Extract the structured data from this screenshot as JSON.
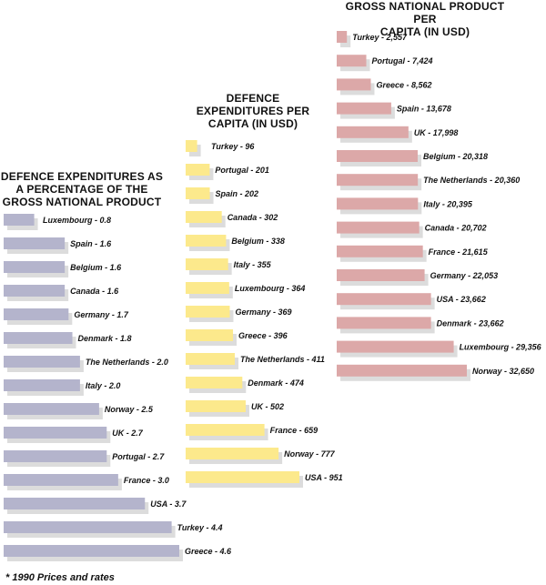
{
  "footnote": "* 1990 Prices and rates",
  "chart_data": [
    {
      "type": "bar",
      "orientation": "horizontal",
      "title": "DEFENCE EXPENDITURES AS\nA PERCENTAGE OF THE\nGROSS NATIONAL PRODUCT",
      "color": "#b4b4cc",
      "shadow_color": "#dcdcdc",
      "categories": [
        "Luxembourg",
        "Spain",
        "Belgium",
        "Canada",
        "Germany",
        "Denmark",
        "The Netherlands",
        "Italy",
        "Norway",
        "UK",
        "Portugal",
        "France",
        "USA",
        "Turkey",
        "Greece"
      ],
      "values": [
        0.8,
        1.6,
        1.6,
        1.6,
        1.7,
        1.8,
        2.0,
        2.0,
        2.5,
        2.7,
        2.7,
        3.0,
        3.7,
        4.4,
        4.6
      ],
      "labels": [
        "Luxembourg - 0.8",
        "Spain - 1.6",
        "Belgium - 1.6",
        "Canada - 1.6",
        "Germany - 1.7",
        "Denmark - 1.8",
        "The Netherlands - 2.0",
        "Italy - 2.0",
        "Norway - 2.5",
        "UK - 2.7",
        "Portugal - 2.7",
        "France - 3.0",
        "USA - 3.7",
        "Turkey - 4.4",
        "Greece - 4.6"
      ]
    },
    {
      "type": "bar",
      "orientation": "horizontal",
      "title": "DEFENCE\nEXPENDITURES PER\nCAPITA (IN USD)",
      "color": "#fce98c",
      "shadow_color": "#dcdcdc",
      "categories": [
        "Turkey",
        "Portugal",
        "Spain",
        "Canada",
        "Belgium",
        "Italy",
        "Luxembourg",
        "Germany",
        "Greece",
        "The Netherlands",
        "Denmark",
        "UK",
        "France",
        "Norway",
        "USA"
      ],
      "values": [
        96,
        201,
        202,
        302,
        338,
        355,
        364,
        369,
        396,
        411,
        474,
        502,
        659,
        777,
        951
      ],
      "labels": [
        "Turkey - 96",
        "Portugal - 201",
        "Spain - 202",
        "Canada - 302",
        "Belgium - 338",
        "Italy - 355",
        "Luxembourg - 364",
        "Germany - 369",
        "Greece - 396",
        "The Netherlands - 411",
        "Denmark - 474",
        "UK - 502",
        "France - 659",
        "Norway - 777",
        "USA - 951"
      ]
    },
    {
      "type": "bar",
      "orientation": "horizontal",
      "title": "GROSS NATIONAL PRODUCT PER\nCAPITA (IN USD)",
      "color": "#dca8a8",
      "shadow_color": "#dcdcdc",
      "categories": [
        "Turkey",
        "Portugal",
        "Greece",
        "Spain",
        "UK",
        "Belgium",
        "The Netherlands",
        "Italy",
        "Canada",
        "France",
        "Germany",
        "USA",
        "Denmark",
        "Luxembourg",
        "Norway"
      ],
      "values": [
        2557,
        7424,
        8562,
        13678,
        17998,
        20318,
        20360,
        20395,
        20702,
        21615,
        22053,
        23662,
        23662,
        29356,
        32650
      ],
      "labels": [
        "Turkey - 2,557",
        "Portugal - 7,424",
        "Greece - 8,562",
        "Spain - 13,678",
        "UK - 17,998",
        "Belgium - 20,318",
        "The Netherlands - 20,360",
        "Italy - 20,395",
        "Canada - 20,702",
        "France - 21,615",
        "Germany - 22,053",
        "USA - 23,662",
        "Denmark - 23,662",
        "Luxembourg - 29,356",
        "Norway - 32,650"
      ]
    }
  ]
}
